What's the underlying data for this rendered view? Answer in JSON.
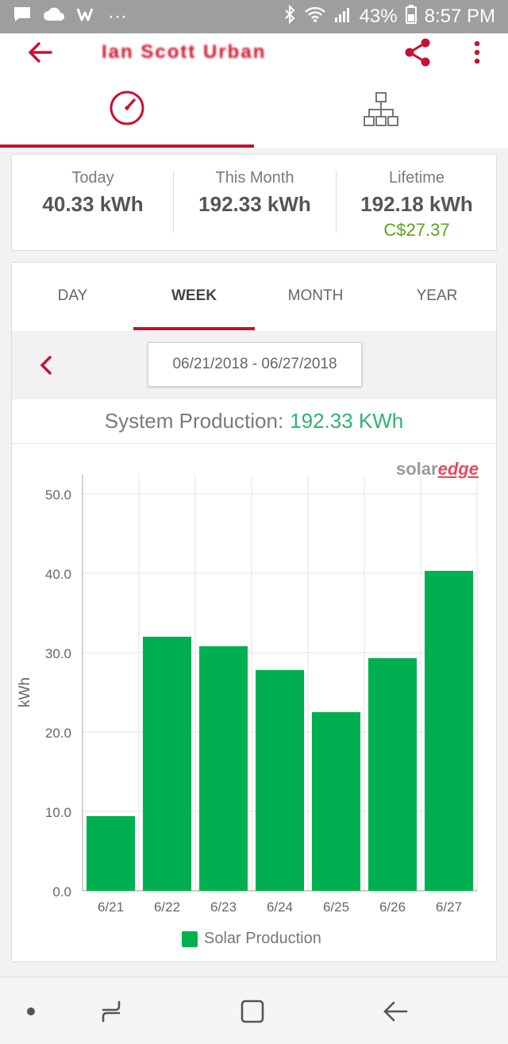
{
  "status_bar": {
    "battery_percent": "43%",
    "time": "8:57 PM",
    "dots": "···"
  },
  "app_bar": {
    "title": "Ian Scott Urban"
  },
  "summary": {
    "today": {
      "label": "Today",
      "value": "40.33 kWh"
    },
    "this_month": {
      "label": "This Month",
      "value": "192.33 kWh"
    },
    "lifetime": {
      "label": "Lifetime",
      "value": "192.18 kWh",
      "revenue": "C$27.37"
    }
  },
  "period_tabs": [
    {
      "label": "DAY"
    },
    {
      "label": "WEEK"
    },
    {
      "label": "MONTH"
    },
    {
      "label": "YEAR"
    }
  ],
  "date_range": "06/21/2018 - 06/27/2018",
  "production": {
    "label": "System Production:",
    "value": "192.33 KWh"
  },
  "brand": {
    "solar": "solar",
    "edge": "edge"
  },
  "colors": {
    "accent": "#c8102e",
    "bar": "#00b050",
    "production_value": "#2fb36e",
    "revenue": "#5ba41a"
  },
  "chart_data": {
    "type": "bar",
    "categories": [
      "6/21",
      "6/22",
      "6/23",
      "6/24",
      "6/25",
      "6/26",
      "6/27"
    ],
    "series": [
      {
        "name": "Solar Production",
        "values": [
          9.4,
          32.0,
          30.8,
          27.8,
          22.5,
          29.3,
          40.3
        ]
      }
    ],
    "ylabel": "kWh",
    "ylim": [
      0,
      50
    ],
    "yticks": [
      "0.0",
      "10.0",
      "20.0",
      "30.0",
      "40.0",
      "50.0"
    ],
    "grid": true,
    "legend": "bottom"
  }
}
